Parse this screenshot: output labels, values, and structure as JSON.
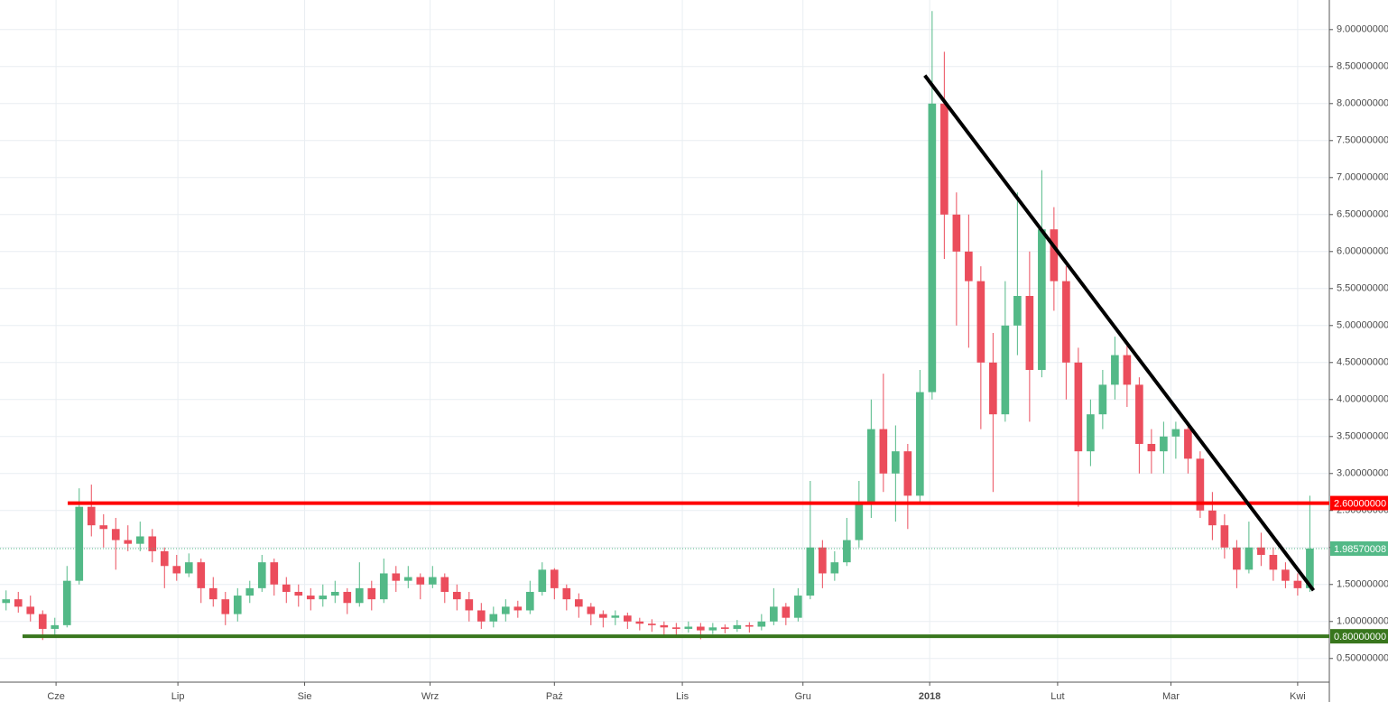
{
  "chart_data": {
    "type": "candlestick",
    "up_color": "#53b987",
    "down_color": "#eb4d5c",
    "grid": true,
    "xlim": [
      0,
      109.1
    ],
    "ylim": [
      0.18,
      9.4
    ],
    "xticks": [
      {
        "value": 4.6,
        "label": "Cze"
      },
      {
        "value": 14.6,
        "label": "Lip"
      },
      {
        "value": 25.0,
        "label": "Sie"
      },
      {
        "value": 35.3,
        "label": "Wrz"
      },
      {
        "value": 45.5,
        "label": "Paź"
      },
      {
        "value": 56.0,
        "label": "Lis"
      },
      {
        "value": 65.9,
        "label": "Gru"
      },
      {
        "value": 76.3,
        "label": "2018"
      },
      {
        "value": 86.8,
        "label": "Lut"
      },
      {
        "value": 96.1,
        "label": "Mar"
      },
      {
        "value": 106.5,
        "label": "Kwi"
      }
    ],
    "yticks": [
      {
        "value": 0.5,
        "label": "0.50000000"
      },
      {
        "value": 1.0,
        "label": "1.00000000"
      },
      {
        "value": 1.5,
        "label": "1.50000000"
      },
      {
        "value": 2.0,
        "label": "2.00000000"
      },
      {
        "value": 2.5,
        "label": "2.50000000"
      },
      {
        "value": 3.0,
        "label": "3.00000000"
      },
      {
        "value": 3.5,
        "label": "3.50000000"
      },
      {
        "value": 4.0,
        "label": "4.00000000"
      },
      {
        "value": 4.5,
        "label": "4.50000000"
      },
      {
        "value": 5.0,
        "label": "5.00000000"
      },
      {
        "value": 5.5,
        "label": "5.50000000"
      },
      {
        "value": 6.0,
        "label": "6.00000000"
      },
      {
        "value": 6.5,
        "label": "6.50000000"
      },
      {
        "value": 7.0,
        "label": "7.00000000"
      },
      {
        "value": 7.5,
        "label": "7.50000000"
      },
      {
        "value": 8.0,
        "label": "8.00000000"
      },
      {
        "value": 8.5,
        "label": "8.50000000"
      },
      {
        "value": 9.0,
        "label": "9.00000000"
      }
    ],
    "levels": [
      {
        "value": 2.6,
        "label": "2.60000000",
        "color": "#ff0000",
        "x0": 5.56
      },
      {
        "value": 0.8,
        "label": "0.80000000",
        "color": "#38761d",
        "x0": 1.85
      }
    ],
    "last_price": 1.98570008,
    "trendline": {
      "color": "#000000",
      "points": [
        [
          75.9,
          8.38
        ],
        [
          107.8,
          1.42
        ]
      ]
    },
    "candles": [
      [
        1.25,
        1.42,
        1.15,
        1.3
      ],
      [
        1.3,
        1.4,
        1.12,
        1.2
      ],
      [
        1.2,
        1.35,
        1.0,
        1.1
      ],
      [
        1.1,
        1.15,
        0.75,
        0.9
      ],
      [
        0.9,
        1.05,
        0.82,
        0.95
      ],
      [
        0.95,
        1.75,
        0.92,
        1.55
      ],
      [
        1.55,
        2.8,
        1.5,
        2.55
      ],
      [
        2.55,
        2.85,
        2.15,
        2.3
      ],
      [
        2.3,
        2.45,
        2.0,
        2.25
      ],
      [
        2.25,
        2.4,
        1.7,
        2.1
      ],
      [
        2.1,
        2.3,
        1.95,
        2.05
      ],
      [
        2.05,
        2.35,
        1.95,
        2.15
      ],
      [
        2.15,
        2.25,
        1.8,
        1.95
      ],
      [
        1.95,
        2.0,
        1.45,
        1.75
      ],
      [
        1.75,
        1.9,
        1.55,
        1.65
      ],
      [
        1.65,
        1.92,
        1.6,
        1.8
      ],
      [
        1.8,
        1.85,
        1.25,
        1.45
      ],
      [
        1.45,
        1.6,
        1.2,
        1.3
      ],
      [
        1.3,
        1.4,
        0.95,
        1.1
      ],
      [
        1.1,
        1.45,
        1.0,
        1.35
      ],
      [
        1.35,
        1.55,
        1.25,
        1.45
      ],
      [
        1.45,
        1.9,
        1.4,
        1.8
      ],
      [
        1.8,
        1.85,
        1.35,
        1.5
      ],
      [
        1.5,
        1.6,
        1.25,
        1.4
      ],
      [
        1.4,
        1.5,
        1.2,
        1.35
      ],
      [
        1.35,
        1.45,
        1.15,
        1.3
      ],
      [
        1.3,
        1.5,
        1.2,
        1.35
      ],
      [
        1.35,
        1.55,
        1.25,
        1.4
      ],
      [
        1.4,
        1.45,
        1.1,
        1.25
      ],
      [
        1.25,
        1.8,
        1.2,
        1.45
      ],
      [
        1.45,
        1.55,
        1.15,
        1.3
      ],
      [
        1.3,
        1.85,
        1.25,
        1.65
      ],
      [
        1.65,
        1.75,
        1.4,
        1.55
      ],
      [
        1.55,
        1.75,
        1.45,
        1.6
      ],
      [
        1.6,
        1.65,
        1.3,
        1.5
      ],
      [
        1.5,
        1.75,
        1.45,
        1.6
      ],
      [
        1.6,
        1.65,
        1.25,
        1.4
      ],
      [
        1.4,
        1.5,
        1.15,
        1.3
      ],
      [
        1.3,
        1.4,
        1.0,
        1.15
      ],
      [
        1.15,
        1.25,
        0.9,
        1.0
      ],
      [
        1.0,
        1.2,
        0.92,
        1.1
      ],
      [
        1.1,
        1.3,
        1.0,
        1.2
      ],
      [
        1.2,
        1.28,
        1.05,
        1.15
      ],
      [
        1.15,
        1.55,
        1.1,
        1.4
      ],
      [
        1.4,
        1.8,
        1.35,
        1.7
      ],
      [
        1.7,
        1.72,
        1.3,
        1.45
      ],
      [
        1.45,
        1.5,
        1.15,
        1.3
      ],
      [
        1.3,
        1.38,
        1.05,
        1.2
      ],
      [
        1.2,
        1.25,
        0.95,
        1.1
      ],
      [
        1.1,
        1.15,
        0.92,
        1.05
      ],
      [
        1.05,
        1.15,
        0.95,
        1.08
      ],
      [
        1.08,
        1.12,
        0.9,
        1.0
      ],
      [
        1.0,
        1.05,
        0.88,
        0.97
      ],
      [
        0.97,
        1.03,
        0.86,
        0.95
      ],
      [
        0.95,
        1.0,
        0.8,
        0.92
      ],
      [
        0.92,
        0.98,
        0.82,
        0.9
      ],
      [
        0.9,
        1.0,
        0.85,
        0.93
      ],
      [
        0.93,
        0.98,
        0.76,
        0.88
      ],
      [
        0.88,
        0.98,
        0.83,
        0.92
      ],
      [
        0.92,
        0.96,
        0.84,
        0.9
      ],
      [
        0.9,
        1.02,
        0.86,
        0.95
      ],
      [
        0.95,
        0.99,
        0.85,
        0.93
      ],
      [
        0.93,
        1.1,
        0.88,
        1.0
      ],
      [
        1.0,
        1.45,
        0.95,
        1.2
      ],
      [
        1.2,
        1.25,
        0.95,
        1.05
      ],
      [
        1.05,
        1.45,
        1.0,
        1.35
      ],
      [
        1.35,
        2.9,
        1.3,
        2.0
      ],
      [
        2.0,
        2.1,
        1.45,
        1.65
      ],
      [
        1.65,
        1.95,
        1.55,
        1.8
      ],
      [
        1.8,
        2.4,
        1.75,
        2.1
      ],
      [
        2.1,
        2.9,
        2.0,
        2.6
      ],
      [
        2.6,
        4.0,
        2.4,
        3.6
      ],
      [
        3.6,
        4.35,
        2.75,
        3.0
      ],
      [
        3.0,
        3.65,
        2.35,
        3.3
      ],
      [
        3.3,
        3.4,
        2.25,
        2.7
      ],
      [
        2.7,
        4.4,
        2.6,
        4.1
      ],
      [
        4.1,
        9.25,
        4.0,
        8.0
      ],
      [
        8.0,
        8.7,
        5.9,
        6.5
      ],
      [
        6.5,
        6.8,
        5.0,
        6.0
      ],
      [
        6.0,
        6.5,
        4.7,
        5.6
      ],
      [
        5.6,
        5.8,
        3.6,
        4.5
      ],
      [
        4.5,
        4.9,
        2.75,
        3.8
      ],
      [
        3.8,
        5.6,
        3.7,
        5.0
      ],
      [
        5.0,
        6.8,
        4.6,
        5.4
      ],
      [
        5.4,
        6.0,
        3.7,
        4.4
      ],
      [
        4.4,
        7.1,
        4.3,
        6.3
      ],
      [
        6.3,
        6.6,
        5.2,
        5.6
      ],
      [
        5.6,
        5.8,
        4.0,
        4.5
      ],
      [
        4.5,
        4.7,
        2.55,
        3.3
      ],
      [
        3.3,
        4.0,
        3.1,
        3.8
      ],
      [
        3.8,
        4.4,
        3.6,
        4.2
      ],
      [
        4.2,
        4.85,
        4.0,
        4.6
      ],
      [
        4.6,
        4.75,
        3.9,
        4.2
      ],
      [
        4.2,
        4.3,
        3.0,
        3.4
      ],
      [
        3.4,
        3.6,
        3.0,
        3.3
      ],
      [
        3.3,
        3.7,
        3.0,
        3.5
      ],
      [
        3.5,
        3.7,
        3.2,
        3.6
      ],
      [
        3.6,
        3.7,
        3.0,
        3.2
      ],
      [
        3.2,
        3.3,
        2.4,
        2.5
      ],
      [
        2.5,
        2.75,
        2.1,
        2.3
      ],
      [
        2.3,
        2.45,
        1.85,
        2.0
      ],
      [
        2.0,
        2.1,
        1.45,
        1.7
      ],
      [
        1.7,
        2.35,
        1.65,
        2.0
      ],
      [
        2.0,
        2.2,
        1.75,
        1.9
      ],
      [
        1.9,
        2.0,
        1.55,
        1.7
      ],
      [
        1.7,
        1.8,
        1.45,
        1.55
      ],
      [
        1.55,
        1.65,
        1.35,
        1.45
      ],
      [
        1.45,
        2.7,
        1.4,
        1.9857
      ]
    ]
  }
}
